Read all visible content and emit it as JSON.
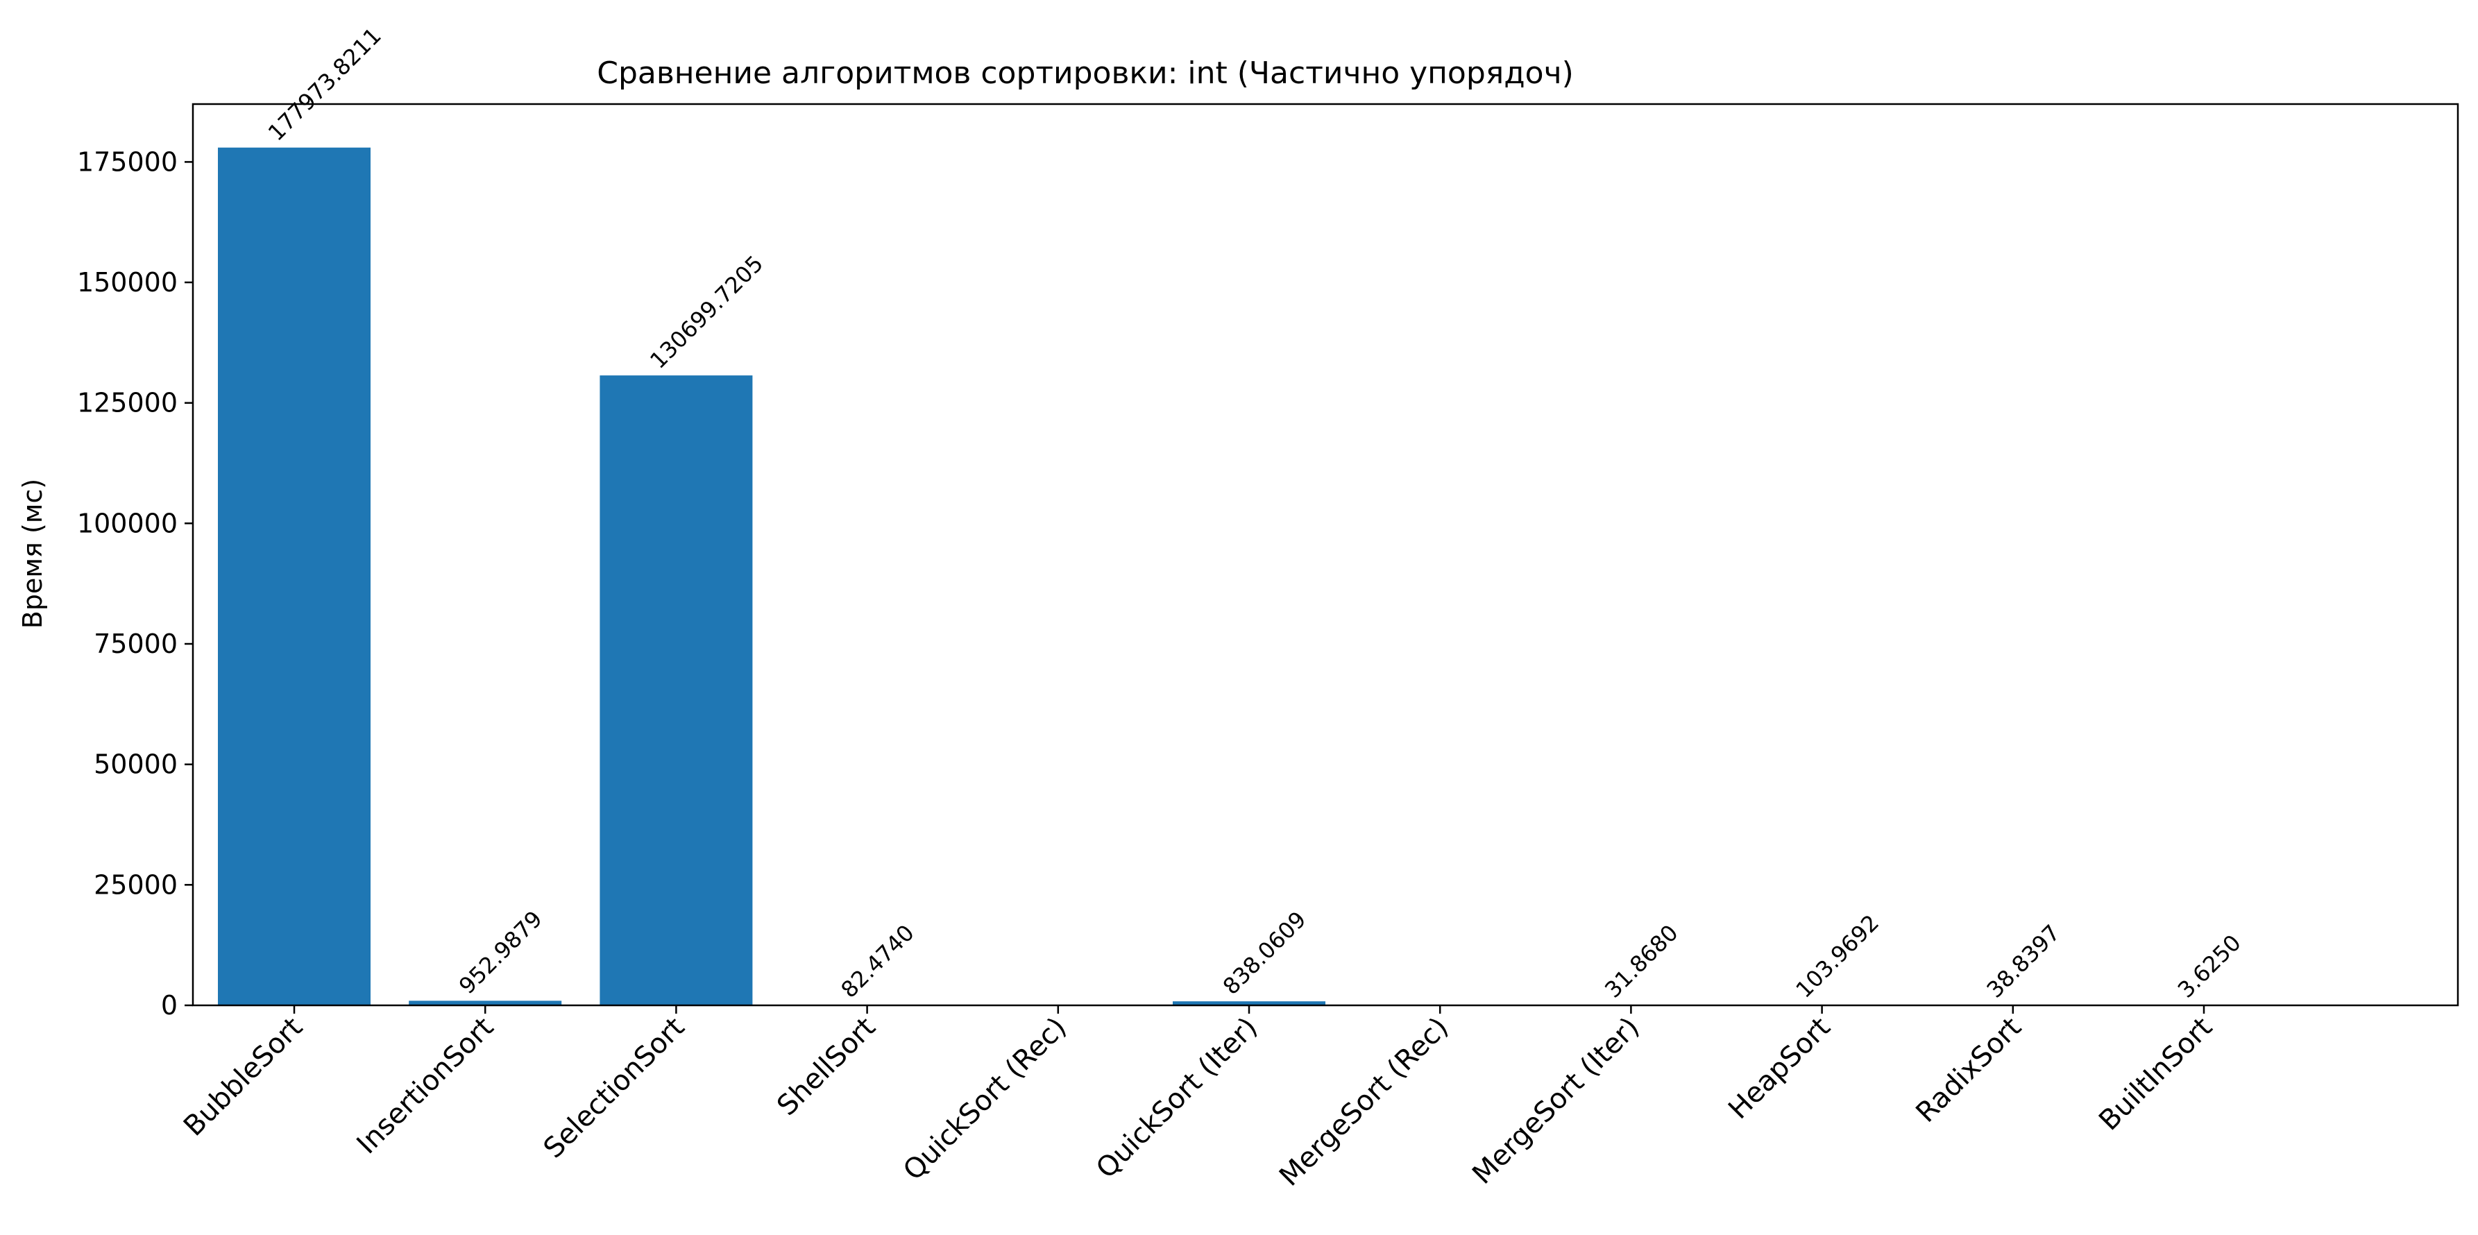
{
  "chart_data": {
    "type": "bar",
    "title": "Сравнение алгоритмов сортировки: int (Частично упорядоч)",
    "xlabel": "",
    "ylabel": "Время (мс)",
    "ylim": [
      0,
      187000
    ],
    "yticks": [
      0,
      25000,
      50000,
      75000,
      100000,
      125000,
      150000,
      175000
    ],
    "grid": false,
    "bar_color": "#1f77b4",
    "categories": [
      "BubbleSort",
      "InsertionSort",
      "SelectionSort",
      "ShellSort",
      "QuickSort (Rec)",
      "QuickSort (Iter)",
      "MergeSort (Rec)",
      "MergeSort (Iter)",
      "HeapSort",
      "RadixSort",
      "BuiltInSort"
    ],
    "values": [
      177973.8211,
      952.9879,
      130699.7205,
      82.474,
      null,
      838.0609,
      null,
      31.868,
      103.9692,
      38.8397,
      3.625
    ],
    "value_labels": [
      "177973.8211",
      "952.9879",
      "130699.7205",
      "82.4740",
      "",
      "838.0609",
      "",
      "31.8680",
      "103.9692",
      "38.8397",
      "3.6250"
    ]
  }
}
